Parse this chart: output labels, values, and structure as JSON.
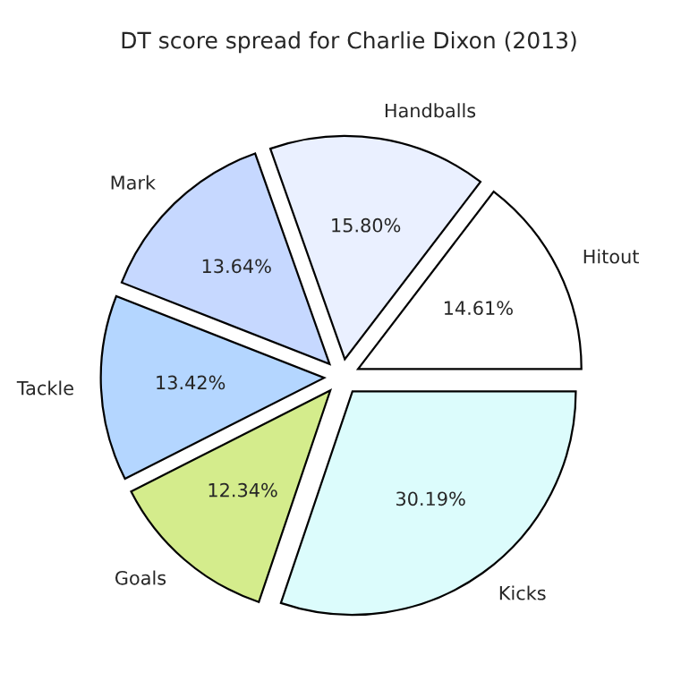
{
  "chart_data": {
    "type": "pie",
    "title": "DT score spread for Charlie Dixon (2013)",
    "categories": [
      "Hitout",
      "Handballs",
      "Mark",
      "Tackle",
      "Goals",
      "Kicks"
    ],
    "values": [
      14.61,
      15.8,
      13.64,
      13.42,
      12.34,
      30.19
    ],
    "colors": [
      "#ffffff",
      "#eaf0ff",
      "#c6d8ff",
      "#b4d6ff",
      "#d4ec8c",
      "#dcfcfc"
    ],
    "value_labels": [
      "14.61%",
      "15.80%",
      "13.64%",
      "13.42%",
      "12.34%",
      "30.19%"
    ]
  }
}
